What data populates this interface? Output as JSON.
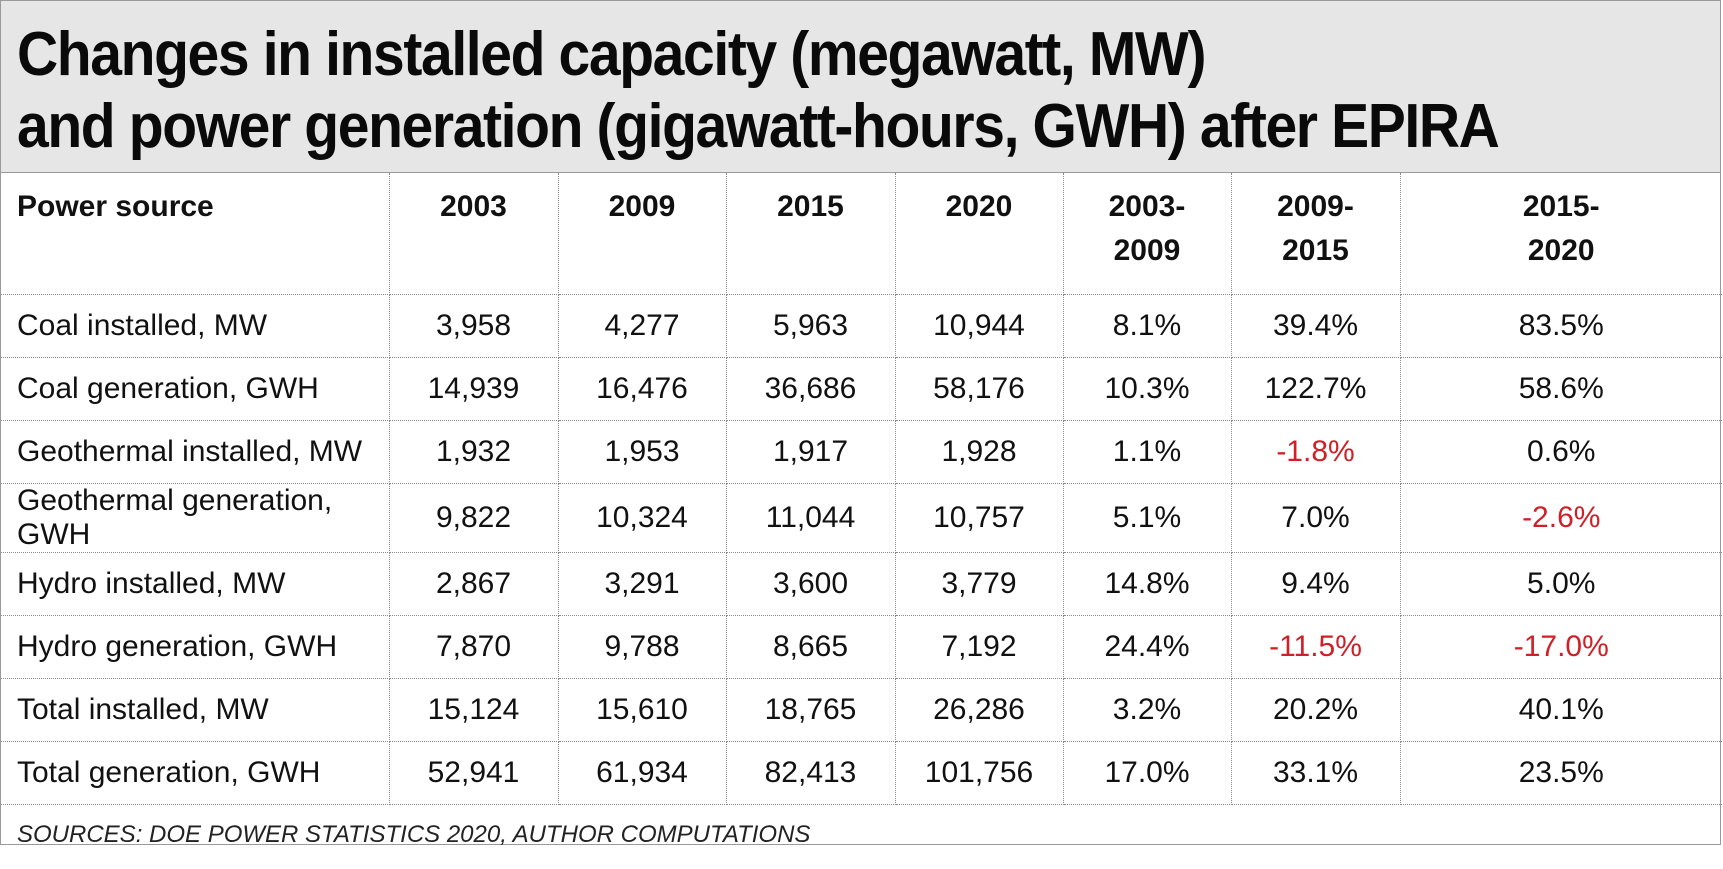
{
  "chart_data": {
    "type": "table",
    "title": "Changes in installed capacity (megawatt, MW) and power generation (gigawatt-hours, GWH) after EPIRA",
    "title_lines": [
      "Changes in installed capacity (megawatt, MW)",
      "and power generation (gigawatt-hours, GWH) after EPIRA"
    ],
    "columns": [
      {
        "lines": [
          "Power source"
        ]
      },
      {
        "lines": [
          "2003"
        ]
      },
      {
        "lines": [
          "2009"
        ]
      },
      {
        "lines": [
          "2015"
        ]
      },
      {
        "lines": [
          "2020"
        ]
      },
      {
        "lines": [
          "2003-",
          "2009"
        ]
      },
      {
        "lines": [
          "2009-",
          "2015"
        ]
      },
      {
        "lines": [
          "2015-",
          "2020"
        ]
      }
    ],
    "rows": [
      [
        "Coal installed, MW",
        "3,958",
        "4,277",
        "5,963",
        "10,944",
        "8.1%",
        "39.4%",
        "83.5%"
      ],
      [
        "Coal generation, GWH",
        "14,939",
        "16,476",
        "36,686",
        "58,176",
        "10.3%",
        "122.7%",
        "58.6%"
      ],
      [
        "Geothermal installed, MW",
        "1,932",
        "1,953",
        "1,917",
        "1,928",
        "1.1%",
        "-1.8%",
        "0.6%"
      ],
      [
        "Geothermal generation, GWH",
        "9,822",
        "10,324",
        "11,044",
        "10,757",
        "5.1%",
        "7.0%",
        "-2.6%"
      ],
      [
        "Hydro installed, MW",
        "2,867",
        "3,291",
        "3,600",
        "3,779",
        "14.8%",
        "9.4%",
        "5.0%"
      ],
      [
        "Hydro generation, GWH",
        "7,870",
        "9,788",
        "8,665",
        "7,192",
        "24.4%",
        "-11.5%",
        "-17.0%"
      ],
      [
        "Total installed, MW",
        "15,124",
        "15,610",
        "18,765",
        "26,286",
        "3.2%",
        "20.2%",
        "40.1%"
      ],
      [
        "Total generation, GWH",
        "52,941",
        "61,934",
        "82,413",
        "101,756",
        "17.0%",
        "33.1%",
        "23.5%"
      ]
    ],
    "negative_color": "#d01f26",
    "source": "SOURCES: DOE POWER STATISTICS 2020, AUTHOR COMPUTATIONS"
  }
}
